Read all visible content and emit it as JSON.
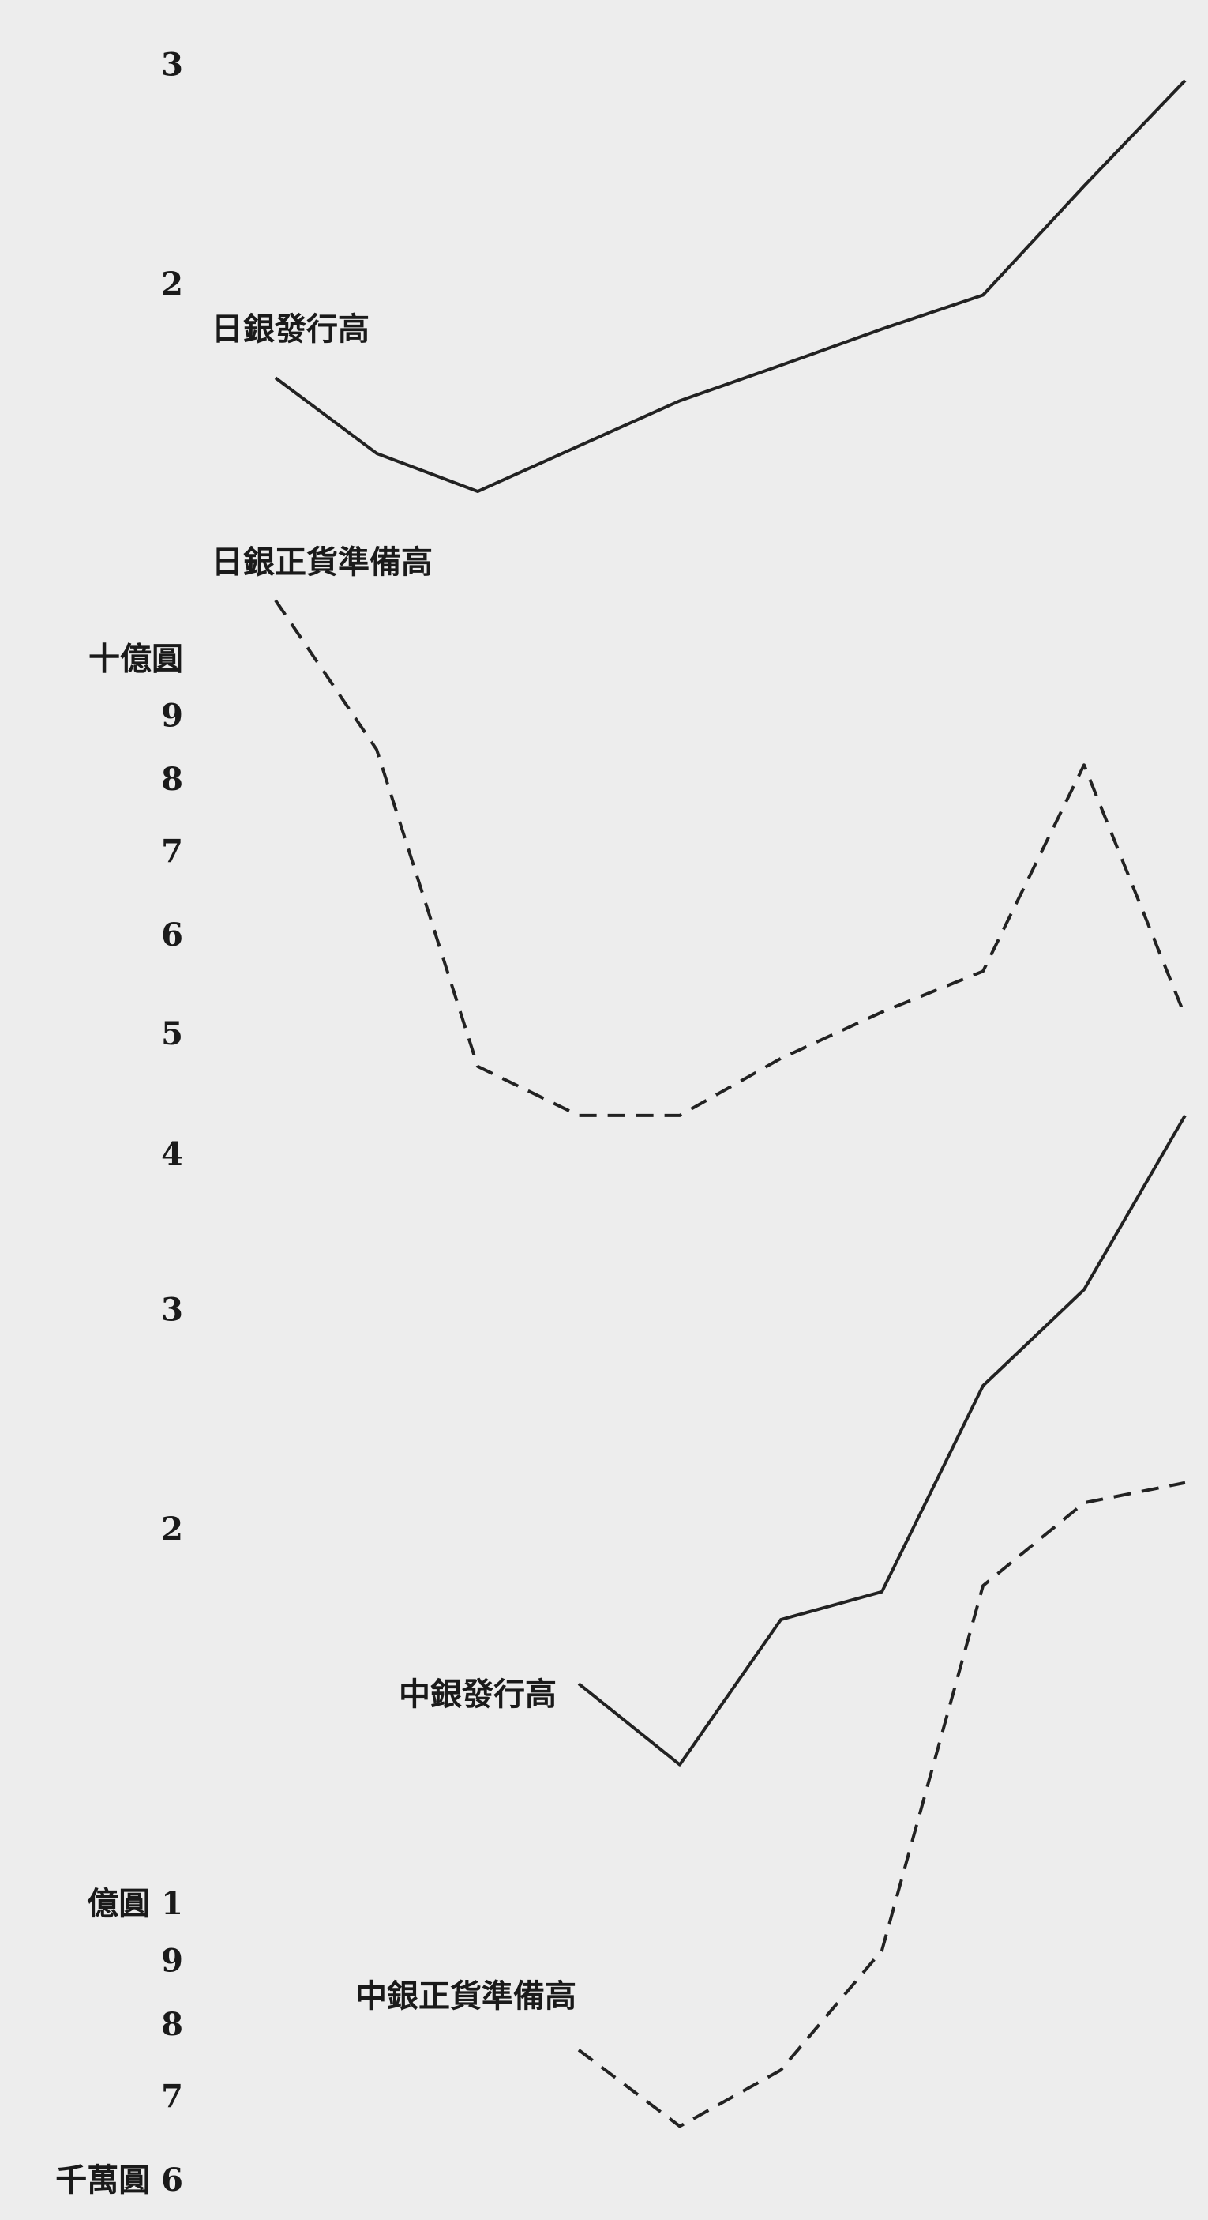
{
  "chart_data": {
    "type": "line",
    "log_scale": true,
    "grid": false,
    "categories": [
      null,
      null,
      null,
      null,
      null,
      null,
      null,
      null,
      null,
      null
    ],
    "ylim": [
      0.56,
      34
    ],
    "yticks": [
      {
        "value": 30,
        "label": "3"
      },
      {
        "value": 20,
        "label": "2"
      },
      {
        "value": 10,
        "label": "十億圓"
      },
      9,
      8,
      7,
      6,
      5,
      4,
      3,
      2,
      {
        "value": 1,
        "label": "億圓 1"
      },
      {
        "value": 0.9,
        "label": "9"
      },
      {
        "value": 0.8,
        "label": "8"
      },
      {
        "value": 0.7,
        "label": "7"
      },
      {
        "value": 0.6,
        "label": "千萬圓 6"
      }
    ],
    "series": [
      {
        "name": "日銀發行高",
        "color": "#222222",
        "dashed": false,
        "values": [
          16.9,
          14.7,
          13.7,
          14.9,
          16.2,
          17.3,
          18.5,
          19.7,
          24.1,
          29.3
        ]
      },
      {
        "name": "日銀正貨準備高",
        "color": "#222222",
        "dashed": true,
        "values": [
          11.2,
          8.5,
          4.73,
          4.32,
          4.32,
          4.8,
          5.23,
          5.64,
          8.26,
          5.19
        ]
      },
      {
        "name": "中銀發行高",
        "color": "#222222",
        "dashed": false,
        "values": [
          null,
          null,
          null,
          1.51,
          1.3,
          1.7,
          1.79,
          2.62,
          3.13,
          4.32
        ]
      },
      {
        "name": "中銀正貨準備高",
        "color": "#222222",
        "dashed": true,
        "values": [
          null,
          null,
          null,
          0.767,
          0.666,
          0.739,
          0.922,
          1.81,
          2.11,
          2.19
        ]
      }
    ]
  }
}
